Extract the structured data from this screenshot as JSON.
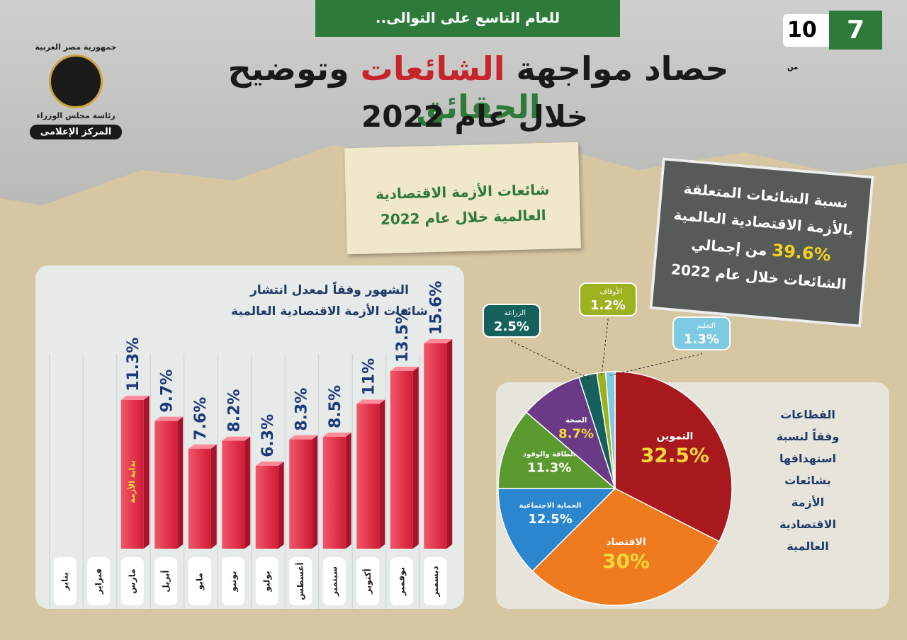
{
  "header": {
    "banner": "للعام التاسع على التوالى..",
    "page": "7",
    "of": "من",
    "total": "10",
    "title_parts": [
      "حصاد مواجهة ",
      "الشائعات",
      " وتوضيح ",
      "الحقائق"
    ],
    "title_line2": "خلال عام 2022",
    "logo_top": "جمهورية مصر العربية",
    "logo_mid": "رئاسة مجلس الوزراء",
    "logo_bottom": "المركز الإعلامى"
  },
  "note": {
    "lines": [
      "شائعات الأزمة الاقتصادية",
      "العالمية خلال عام 2022"
    ]
  },
  "stat": {
    "lines": [
      "نسبة الشائعات المتعلقة",
      "بالأزمة الاقتصادية العالمية"
    ],
    "highlight": "39.6%",
    "after": "من إجمالي",
    "last": "الشائعات خلال عام 2022"
  },
  "chart_data": [
    {
      "type": "bar",
      "title_lines": [
        "الشهور وفقاً لمعدل انتشار",
        "شائعات الأزمة الاقتصادية العالمية"
      ],
      "categories": [
        "يناير",
        "فبراير",
        "مارس",
        "أبريل",
        "مايو",
        "يونيو",
        "يوليو",
        "أغسطس",
        "سبتمبر",
        "أكتوبر",
        "نوفمبر",
        "ديسمبر"
      ],
      "values": [
        null,
        null,
        11.3,
        9.7,
        7.6,
        8.2,
        6.3,
        8.3,
        8.5,
        11,
        13.5,
        15.6
      ],
      "value_labels": [
        null,
        null,
        "11.3%",
        "9.7%",
        "7.6%",
        "8.2%",
        "6.3%",
        "8.3%",
        "8.5%",
        "11%",
        "13.5%",
        "15.6%"
      ],
      "color": "#e8304a",
      "annotation": "بداية الأزمة"
    },
    {
      "type": "pie",
      "title_lines": [
        "القطاعات",
        "وفقاً لنسبة",
        "استهدافها",
        "بشائعات",
        "الأزمة",
        "الاقتصادية",
        "العالمية"
      ],
      "categories": [
        "التموين",
        "الاقتصاد",
        "الحماية الاجتماعية",
        "الطاقة والوقود",
        "الصحة",
        "الزراعة",
        "الأوقاف",
        "التعليم"
      ],
      "values": [
        32.5,
        30,
        12.5,
        11.3,
        8.7,
        2.5,
        1.2,
        1.3
      ],
      "value_labels": [
        "32.5%",
        "30%",
        "12.5%",
        "11.3%",
        "8.7%",
        "2.5%",
        "1.2%",
        "1.3%"
      ],
      "colors": [
        "#a8191e",
        "#f07a1e",
        "#2a86cf",
        "#5a9a2e",
        "#6a3a86",
        "#16605e",
        "#9cb21e",
        "#7ccbe3"
      ]
    }
  ]
}
